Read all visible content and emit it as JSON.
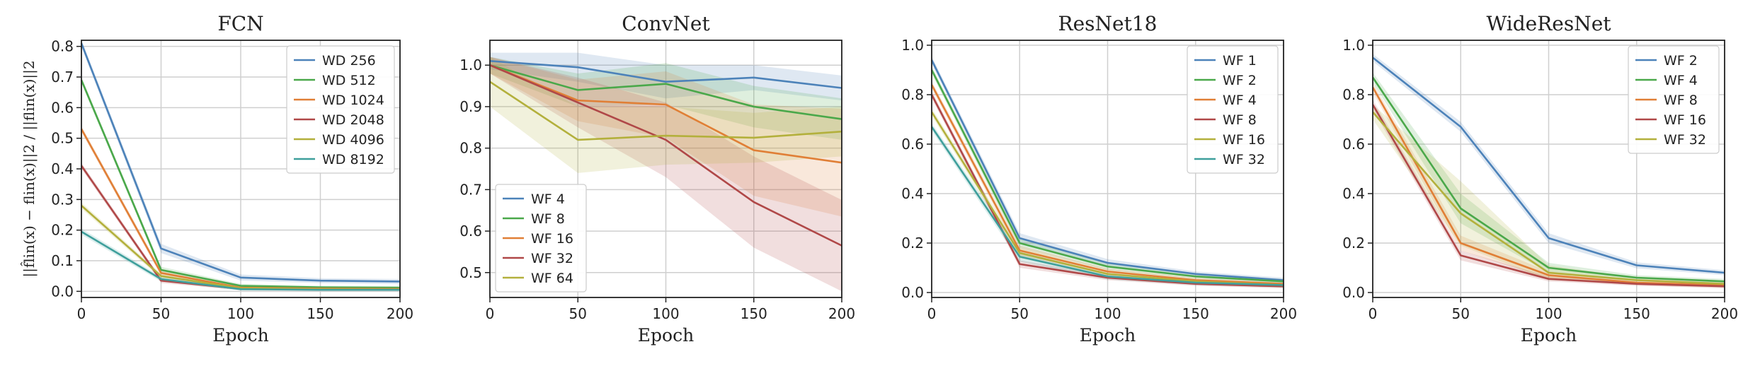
{
  "colors": [
    "#4c82b9",
    "#4aa84a",
    "#e07f36",
    "#b04848",
    "#b3b03c",
    "#3f9f9c"
  ],
  "chart_data": [
    {
      "type": "line",
      "title": "FCN",
      "xlabel": "Epoch",
      "ylabel": "||f̂lin(x) − flin(x)||2 / ||flin(x)||2",
      "x": [
        0,
        50,
        100,
        150,
        200
      ],
      "xlim": [
        0,
        200
      ],
      "ylim": [
        -0.02,
        0.82
      ],
      "xticks": [
        0,
        50,
        100,
        150,
        200
      ],
      "yticks": [
        0.0,
        0.1,
        0.2,
        0.3,
        0.4,
        0.5,
        0.6,
        0.7,
        0.8
      ],
      "grid": true,
      "legend_position": "top-right",
      "series": [
        {
          "name": "WD 256",
          "values": [
            0.81,
            0.14,
            0.045,
            0.035,
            0.032
          ],
          "band": [
            0.012,
            0.015,
            0.01,
            0.008,
            0.008
          ]
        },
        {
          "name": "WD 512",
          "values": [
            0.69,
            0.07,
            0.018,
            0.013,
            0.012
          ],
          "band": [
            0.01,
            0.01,
            0.006,
            0.005,
            0.005
          ]
        },
        {
          "name": "WD 1024",
          "values": [
            0.53,
            0.06,
            0.012,
            0.009,
            0.008
          ],
          "band": [
            0.01,
            0.01,
            0.005,
            0.004,
            0.004
          ]
        },
        {
          "name": "WD 2048",
          "values": [
            0.41,
            0.035,
            0.008,
            0.006,
            0.006
          ],
          "band": [
            0.01,
            0.008,
            0.004,
            0.003,
            0.003
          ]
        },
        {
          "name": "WD 4096",
          "values": [
            0.28,
            0.05,
            0.01,
            0.007,
            0.006
          ],
          "band": [
            0.01,
            0.008,
            0.004,
            0.003,
            0.003
          ]
        },
        {
          "name": "WD 8192",
          "values": [
            0.195,
            0.04,
            0.007,
            0.005,
            0.005
          ],
          "band": [
            0.01,
            0.008,
            0.004,
            0.003,
            0.003
          ]
        }
      ]
    },
    {
      "type": "line",
      "title": "ConvNet",
      "xlabel": "Epoch",
      "ylabel": "",
      "x": [
        0,
        50,
        100,
        150,
        200
      ],
      "xlim": [
        0,
        200
      ],
      "ylim": [
        0.44,
        1.06
      ],
      "xticks": [
        0,
        50,
        100,
        150,
        200
      ],
      "yticks": [
        0.5,
        0.6,
        0.7,
        0.8,
        0.9,
        1.0
      ],
      "grid": true,
      "legend_position": "bottom-left",
      "series": [
        {
          "name": "WF 4",
          "values": [
            1.01,
            0.995,
            0.96,
            0.97,
            0.945
          ],
          "band": [
            0.02,
            0.035,
            0.04,
            0.03,
            0.03
          ]
        },
        {
          "name": "WF 8",
          "values": [
            1.0,
            0.94,
            0.955,
            0.9,
            0.87
          ],
          "band": [
            0.02,
            0.04,
            0.05,
            0.05,
            0.05
          ]
        },
        {
          "name": "WF 16",
          "values": [
            1.0,
            0.915,
            0.905,
            0.795,
            0.765
          ],
          "band": [
            0.02,
            0.05,
            0.08,
            0.11,
            0.13
          ]
        },
        {
          "name": "WF 32",
          "values": [
            1.0,
            0.91,
            0.82,
            0.67,
            0.565
          ],
          "band": [
            0.02,
            0.06,
            0.09,
            0.11,
            0.11
          ]
        },
        {
          "name": "WF 64",
          "values": [
            0.96,
            0.82,
            0.83,
            0.825,
            0.84
          ],
          "band": [
            0.06,
            0.08,
            0.07,
            0.06,
            0.06
          ]
        }
      ]
    },
    {
      "type": "line",
      "title": "ResNet18",
      "xlabel": "Epoch",
      "ylabel": "",
      "x": [
        0,
        50,
        100,
        150,
        200
      ],
      "xlim": [
        0,
        200
      ],
      "ylim": [
        -0.02,
        1.02
      ],
      "xticks": [
        0,
        50,
        100,
        150,
        200
      ],
      "yticks": [
        0.0,
        0.2,
        0.4,
        0.6,
        0.8,
        1.0
      ],
      "grid": true,
      "legend_position": "top-right",
      "series": [
        {
          "name": "WF 1",
          "values": [
            0.94,
            0.22,
            0.12,
            0.075,
            0.05
          ],
          "band": [
            0.015,
            0.02,
            0.015,
            0.01,
            0.01
          ]
        },
        {
          "name": "WF 2",
          "values": [
            0.9,
            0.2,
            0.105,
            0.065,
            0.045
          ],
          "band": [
            0.015,
            0.02,
            0.015,
            0.01,
            0.01
          ]
        },
        {
          "name": "WF 4",
          "values": [
            0.84,
            0.17,
            0.085,
            0.05,
            0.035
          ],
          "band": [
            0.015,
            0.02,
            0.012,
            0.01,
            0.01
          ]
        },
        {
          "name": "WF 8",
          "values": [
            0.8,
            0.115,
            0.06,
            0.035,
            0.025
          ],
          "band": [
            0.015,
            0.015,
            0.01,
            0.008,
            0.008
          ]
        },
        {
          "name": "WF 16",
          "values": [
            0.73,
            0.16,
            0.075,
            0.045,
            0.03
          ],
          "band": [
            0.015,
            0.02,
            0.012,
            0.01,
            0.01
          ]
        },
        {
          "name": "WF 32",
          "values": [
            0.67,
            0.145,
            0.065,
            0.04,
            0.03
          ],
          "band": [
            0.015,
            0.02,
            0.012,
            0.01,
            0.01
          ]
        }
      ]
    },
    {
      "type": "line",
      "title": "WideResNet",
      "xlabel": "Epoch",
      "ylabel": "",
      "x": [
        0,
        50,
        100,
        150,
        200
      ],
      "xlim": [
        0,
        200
      ],
      "ylim": [
        -0.02,
        1.02
      ],
      "xticks": [
        0,
        50,
        100,
        150,
        200
      ],
      "yticks": [
        0.0,
        0.2,
        0.4,
        0.6,
        0.8,
        1.0
      ],
      "grid": true,
      "legend_position": "top-right",
      "series": [
        {
          "name": "WF 2",
          "values": [
            0.95,
            0.67,
            0.22,
            0.11,
            0.08
          ],
          "band": [
            0.015,
            0.02,
            0.02,
            0.012,
            0.01
          ]
        },
        {
          "name": "WF 4",
          "values": [
            0.87,
            0.34,
            0.1,
            0.06,
            0.045
          ],
          "band": [
            0.02,
            0.06,
            0.02,
            0.01,
            0.01
          ]
        },
        {
          "name": "WF 8",
          "values": [
            0.83,
            0.2,
            0.07,
            0.04,
            0.03
          ],
          "band": [
            0.02,
            0.03,
            0.015,
            0.01,
            0.01
          ]
        },
        {
          "name": "WF 16",
          "values": [
            0.76,
            0.15,
            0.055,
            0.035,
            0.025
          ],
          "band": [
            0.02,
            0.02,
            0.01,
            0.008,
            0.008
          ]
        },
        {
          "name": "WF 32",
          "values": [
            0.73,
            0.32,
            0.08,
            0.05,
            0.035
          ],
          "band": [
            0.03,
            0.13,
            0.03,
            0.01,
            0.01
          ]
        }
      ]
    }
  ]
}
